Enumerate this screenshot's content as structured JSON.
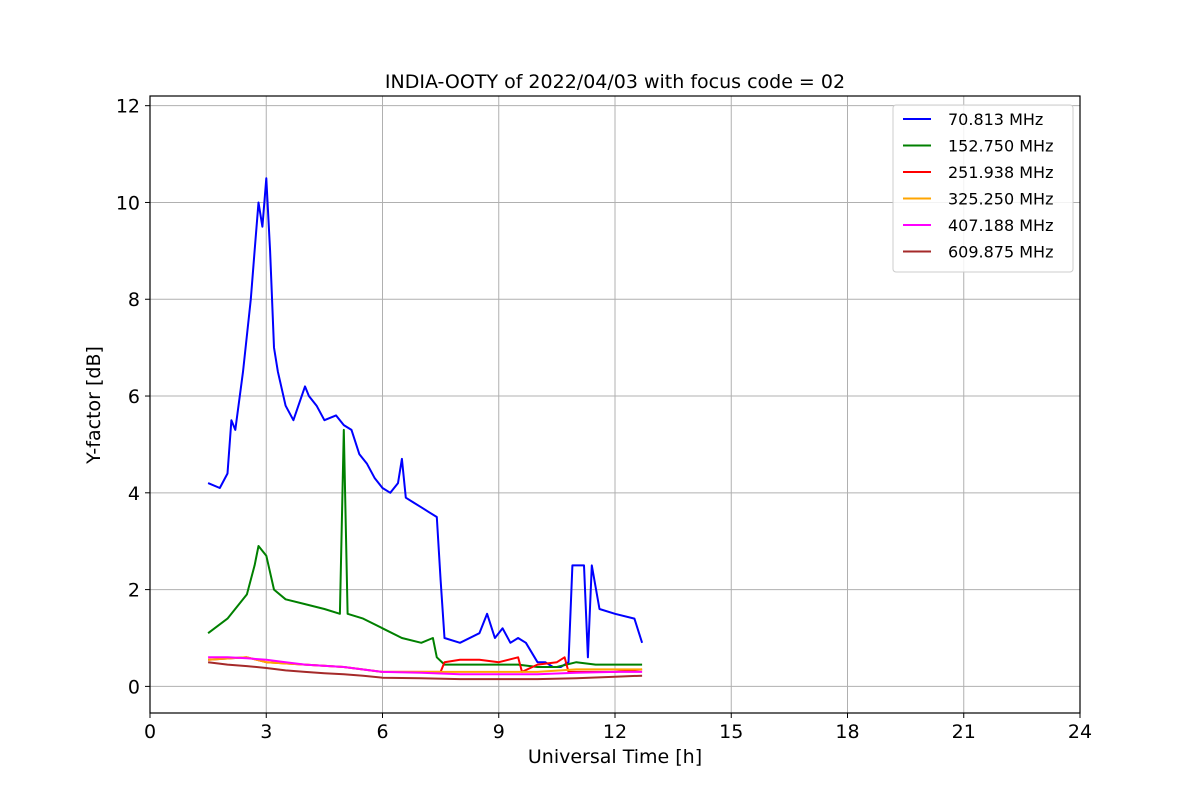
{
  "chart_data": {
    "type": "line",
    "title": "INDIA-OOTY of 2022/04/03 with focus code = 02",
    "xlabel": "Universal Time [h]",
    "ylabel": "Y-factor [dB]",
    "xlim": [
      0,
      24
    ],
    "ylim": [
      -0.55,
      12.2
    ],
    "xticks": [
      0,
      3,
      6,
      9,
      12,
      15,
      18,
      21,
      24
    ],
    "yticks": [
      0,
      2,
      4,
      6,
      8,
      10,
      12
    ],
    "grid": true,
    "legend_position": "top-right",
    "series": [
      {
        "name": " 70.813 MHz",
        "color": "#0000ff",
        "x": [
          1.5,
          1.8,
          2.0,
          2.1,
          2.2,
          2.4,
          2.6,
          2.7,
          2.8,
          2.9,
          3.0,
          3.1,
          3.2,
          3.3,
          3.5,
          3.7,
          4.0,
          4.1,
          4.3,
          4.5,
          4.8,
          5.0,
          5.2,
          5.4,
          5.6,
          5.8,
          6.0,
          6.2,
          6.4,
          6.5,
          6.6,
          6.8,
          7.0,
          7.2,
          7.4,
          7.5,
          7.6,
          8.0,
          8.5,
          8.7,
          8.9,
          9.1,
          9.3,
          9.5,
          9.7,
          10.0,
          10.2,
          10.4,
          10.6,
          10.8,
          10.9,
          11.0,
          11.2,
          11.3,
          11.4,
          11.6,
          12.0,
          12.5,
          12.7
        ],
        "y": [
          4.2,
          4.1,
          4.4,
          5.5,
          5.3,
          6.5,
          8.0,
          9.0,
          10.0,
          9.5,
          10.5,
          9.0,
          7.0,
          6.5,
          5.8,
          5.5,
          6.2,
          6.0,
          5.8,
          5.5,
          5.6,
          5.4,
          5.3,
          4.8,
          4.6,
          4.3,
          4.1,
          4.0,
          4.2,
          4.7,
          3.9,
          3.8,
          3.7,
          3.6,
          3.5,
          2.2,
          1.0,
          0.9,
          1.1,
          1.5,
          1.0,
          1.2,
          0.9,
          1.0,
          0.9,
          0.5,
          0.5,
          0.4,
          0.4,
          0.5,
          2.5,
          2.5,
          2.5,
          0.6,
          2.5,
          1.6,
          1.5,
          1.4,
          0.9
        ]
      },
      {
        "name": "152.750 MHz",
        "color": "#008000",
        "x": [
          1.5,
          2.0,
          2.5,
          2.7,
          2.8,
          3.0,
          3.2,
          3.5,
          4.0,
          4.5,
          4.9,
          5.0,
          5.1,
          5.5,
          6.0,
          6.5,
          7.0,
          7.3,
          7.4,
          7.6,
          8.0,
          8.5,
          9.0,
          9.5,
          10.0,
          10.5,
          11.0,
          11.5,
          12.0,
          12.5,
          12.7
        ],
        "y": [
          1.1,
          1.4,
          1.9,
          2.5,
          2.9,
          2.7,
          2.0,
          1.8,
          1.7,
          1.6,
          1.5,
          5.3,
          1.5,
          1.4,
          1.2,
          1.0,
          0.9,
          1.0,
          0.6,
          0.45,
          0.45,
          0.45,
          0.45,
          0.45,
          0.4,
          0.4,
          0.5,
          0.45,
          0.45,
          0.45,
          0.45
        ]
      },
      {
        "name": "251.938 MHz",
        "color": "#ff0000",
        "x": [
          1.5,
          2.5,
          3.0,
          4.0,
          5.0,
          6.0,
          7.0,
          7.5,
          7.6,
          8.0,
          8.5,
          9.0,
          9.5,
          9.6,
          10.0,
          10.5,
          10.7,
          10.8,
          11.0,
          12.0,
          12.7
        ],
        "y": [
          0.55,
          0.6,
          0.5,
          0.45,
          0.4,
          0.3,
          0.3,
          0.3,
          0.5,
          0.55,
          0.55,
          0.5,
          0.6,
          0.3,
          0.45,
          0.5,
          0.6,
          0.3,
          0.3,
          0.3,
          0.35
        ]
      },
      {
        "name": "325.250 MHz",
        "color": "#ffa500",
        "x": [
          1.5,
          2.5,
          3.0,
          4.0,
          5.0,
          6.0,
          7.0,
          8.0,
          9.0,
          10.0,
          11.0,
          12.0,
          12.7
        ],
        "y": [
          0.55,
          0.6,
          0.5,
          0.45,
          0.4,
          0.3,
          0.3,
          0.3,
          0.3,
          0.3,
          0.35,
          0.35,
          0.35
        ]
      },
      {
        "name": "407.188 MHz",
        "color": "#ff00ff",
        "x": [
          1.5,
          2.0,
          2.5,
          3.0,
          3.5,
          4.0,
          5.0,
          6.0,
          7.0,
          8.0,
          9.0,
          10.0,
          11.0,
          12.0,
          12.7
        ],
        "y": [
          0.6,
          0.6,
          0.58,
          0.55,
          0.5,
          0.45,
          0.4,
          0.3,
          0.28,
          0.25,
          0.25,
          0.25,
          0.28,
          0.3,
          0.3
        ]
      },
      {
        "name": "609.875 MHz",
        "color": "#a52a2a",
        "x": [
          1.5,
          2.0,
          2.5,
          3.0,
          3.5,
          4.0,
          4.5,
          5.0,
          5.5,
          6.0,
          7.0,
          8.0,
          9.0,
          10.0,
          11.0,
          12.0,
          12.7
        ],
        "y": [
          0.5,
          0.45,
          0.42,
          0.38,
          0.33,
          0.3,
          0.27,
          0.25,
          0.22,
          0.18,
          0.17,
          0.15,
          0.15,
          0.15,
          0.17,
          0.2,
          0.22
        ]
      }
    ]
  }
}
